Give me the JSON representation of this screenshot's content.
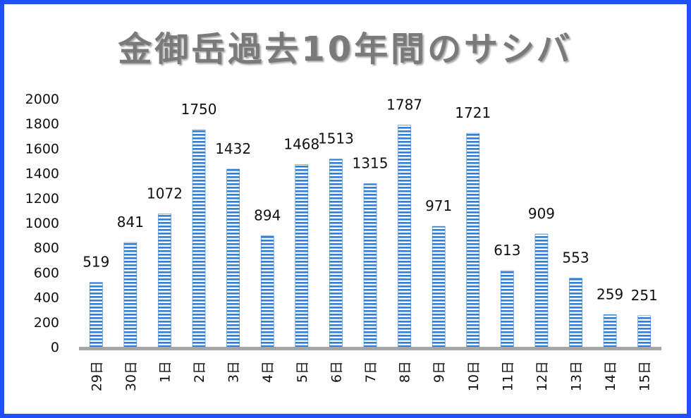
{
  "chart_data": {
    "type": "bar",
    "title": "金御岳過去10年間のサシバ",
    "categories": [
      "29日",
      "30日",
      "1日",
      "2日",
      "3日",
      "4日",
      "5日",
      "6日",
      "7日",
      "8日",
      "9日",
      "10日",
      "11日",
      "12日",
      "13日",
      "14日",
      "15日"
    ],
    "values": [
      519,
      841,
      1072,
      1750,
      1432,
      894,
      1468,
      1513,
      1315,
      1787,
      971,
      1721,
      613,
      909,
      553,
      259,
      251
    ],
    "yticks": [
      0,
      200,
      400,
      600,
      800,
      1000,
      1200,
      1400,
      1600,
      1800,
      2000
    ],
    "ylim": [
      0,
      2000
    ],
    "xlabel": "",
    "ylabel": "",
    "grid": false,
    "legend": "none",
    "bar_color": "#2f7fd6",
    "bar_stripe_color": "#ffffff",
    "axis_color": "#a6a6a6",
    "frame_color": "#1f4fff"
  }
}
